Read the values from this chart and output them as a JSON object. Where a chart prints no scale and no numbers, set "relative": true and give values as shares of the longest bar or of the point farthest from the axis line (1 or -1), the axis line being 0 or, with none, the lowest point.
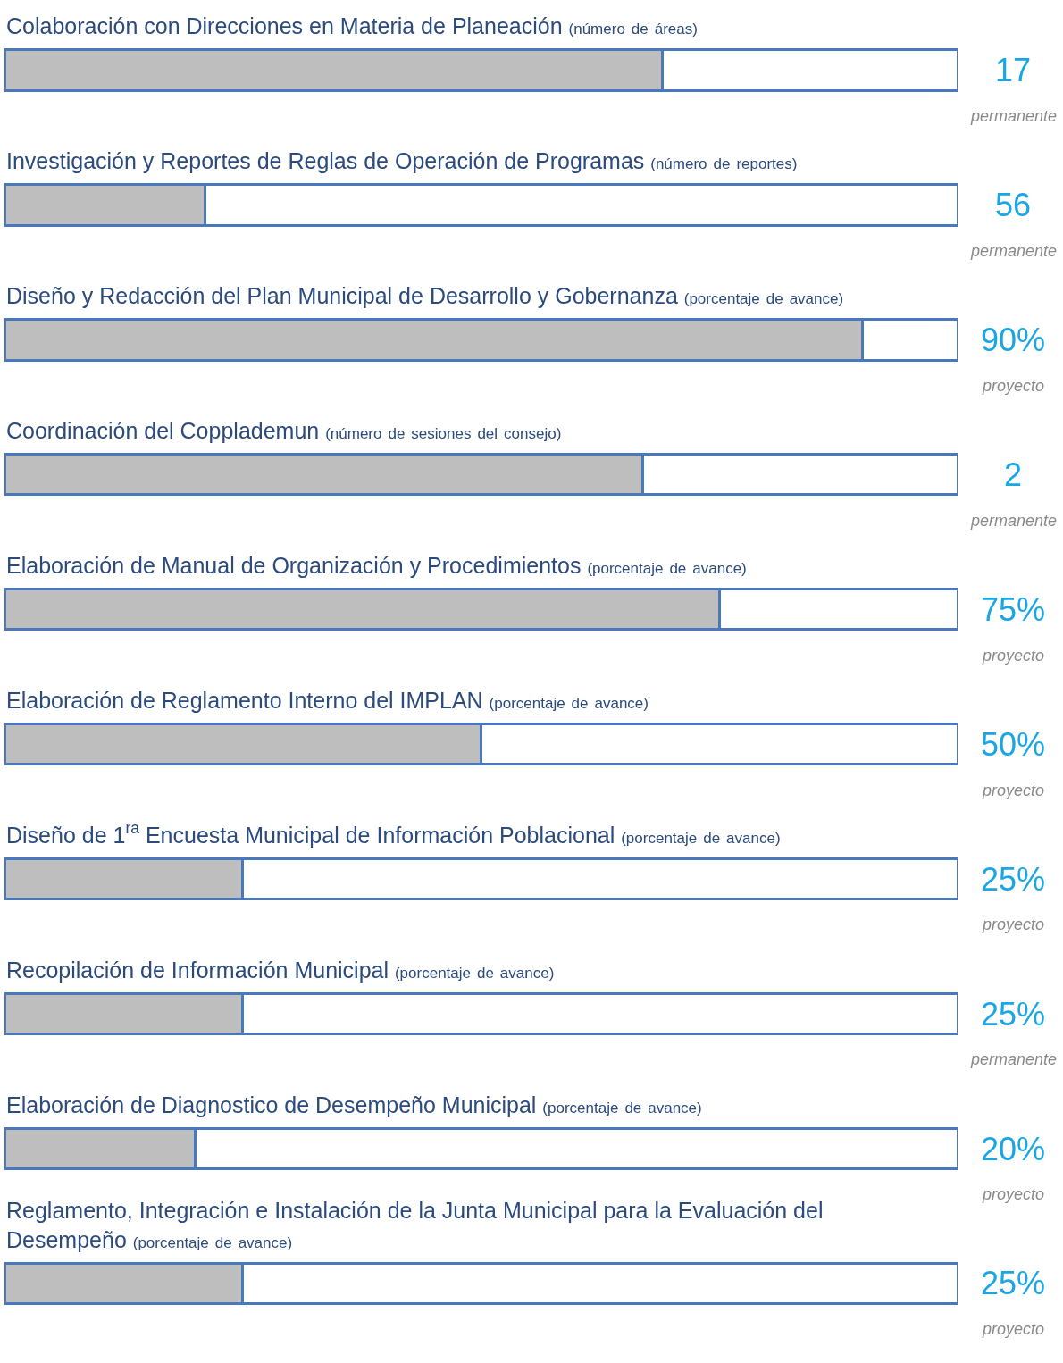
{
  "chart_data": {
    "type": "bar",
    "orientation": "horizontal",
    "stacked": true,
    "relative": true,
    "categories": [
      "Colaboración con Direcciones en Materia de Planeación (número de áreas)",
      "Investigación y Reportes de Reglas de Operación de Programas (número de reportes)",
      "Diseño y Redacción del Plan Municipal de Desarrollo y Gobernanza (porcentaje de avance)",
      "Coordinación del Copplademun (número de sesiones del consejo)",
      "Elaboración de Manual de Organización y Procedimientos (porcentaje de avance)",
      "Elaboración de Reglamento Interno del IMPLAN (porcentaje de avance)",
      "Diseño de 1$^{ra}$ Encuesta Municipal de Información Poblacional (porcentaje de avance)",
      "Recopilación de Información Municipal (porcentaje de avance)",
      "Elaboración de Diagnostico de Desempeño Municipal (porcentaje de avance)",
      "Reglamento, Integración e Instalación de la Junta Municipal para la Evaluación del Desempeño (porcentaje de avance)"
    ],
    "series": [
      {
        "color": "#bebebe",
        "values": [
          0.69,
          0.21,
          0.9,
          0.67,
          0.75,
          0.5,
          0.25,
          0.25,
          0.2,
          0.25
        ]
      },
      {
        "color": "#ffffff",
        "values": [
          0.31,
          0.79,
          0.1,
          0.33,
          0.25,
          0.5,
          0.75,
          0.75,
          0.8,
          0.75
        ]
      }
    ],
    "annotations": [
      "17",
      "permanente",
      "56",
      "permanente",
      "90%",
      "proyecto",
      "2",
      "permanente",
      "75%",
      "proyecto",
      "50%",
      "proyecto",
      "25%",
      "proyecto",
      "25%",
      "permanente",
      "20%",
      "proyecto",
      "25%",
      "proyecto"
    ]
  }
}
